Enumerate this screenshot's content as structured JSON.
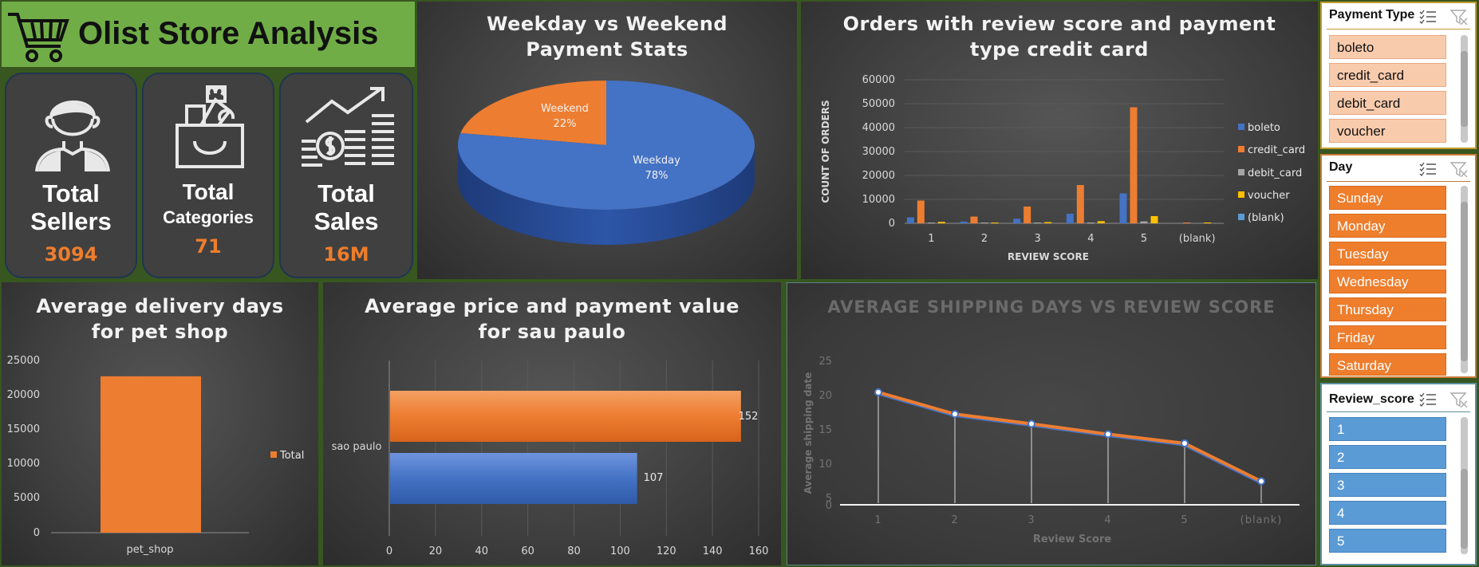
{
  "header": {
    "title": "Olist Store Analysis"
  },
  "kpis": [
    {
      "line1": "Total",
      "line2": "Sellers",
      "value": "3094",
      "icon": "person-icon"
    },
    {
      "line1": "Total",
      "line2": "Categories",
      "value": "71",
      "icon": "shopping-bag-icon"
    },
    {
      "line1": "Total",
      "line2": "Sales",
      "value": "16M",
      "icon": "coins-growth-icon"
    }
  ],
  "colors": {
    "orange": "#ed7d31",
    "blue": "#4472c4",
    "gray": "#a5a5a5",
    "yellow": "#ffc000",
    "lightblue": "#5b9bd5",
    "green": "#70ad47"
  },
  "pie": {
    "title_line1": "Weekday vs Weekend",
    "title_line2": "Payment Stats",
    "weekend_label": "Weekend",
    "weekend_pct": "22%",
    "weekday_label": "Weekday",
    "weekday_pct": "78%"
  },
  "orders": {
    "title_line1": "Orders with review score and payment",
    "title_line2": "type credit card",
    "ylabel": "COUNT OF ORDERS",
    "xlabel": "REVIEW SCORE",
    "yticks": [
      "60000",
      "50000",
      "40000",
      "30000",
      "20000",
      "10000",
      "0"
    ],
    "legend": [
      "boleto",
      "credit_card",
      "debit_card",
      "voucher",
      "(blank)"
    ]
  },
  "pet": {
    "title_line1": "Average delivery days",
    "title_line2": "for pet shop",
    "yticks": [
      "25000",
      "20000",
      "15000",
      "10000",
      "5000",
      "0"
    ],
    "category": "pet_shop",
    "legend": "Total"
  },
  "sp": {
    "title_line1": "Average price and payment value",
    "title_line2": "for sau paulo",
    "category": "sao paulo",
    "label_top": "152",
    "label_bottom": "107",
    "xticks": [
      "0",
      "20",
      "40",
      "60",
      "80",
      "100",
      "120",
      "140",
      "160"
    ]
  },
  "ship": {
    "title": "AVERAGE SHIPPING DAYS VS REVIEW SCORE",
    "ylabel": "Average shipping date",
    "xlabel": "Review Score",
    "yticks": [
      "25",
      "20",
      "15",
      "10",
      "5",
      "0"
    ]
  },
  "chart_data": [
    {
      "type": "pie",
      "title": "Weekday vs Weekend Payment Stats",
      "categories": [
        "Weekend",
        "Weekday"
      ],
      "values": [
        22,
        78
      ]
    },
    {
      "type": "bar",
      "title": "Orders with review score and payment type credit card",
      "xlabel": "REVIEW SCORE",
      "ylabel": "COUNT OF ORDERS",
      "ylim": [
        0,
        60000
      ],
      "categories": [
        "1",
        "2",
        "3",
        "4",
        "5",
        "(blank)"
      ],
      "series": [
        {
          "name": "boleto",
          "values": [
            2500,
            700,
            1900,
            4000,
            12500,
            0
          ]
        },
        {
          "name": "credit_card",
          "values": [
            9500,
            2800,
            7000,
            16000,
            48500,
            300
          ]
        },
        {
          "name": "debit_card",
          "values": [
            200,
            100,
            200,
            300,
            800,
            0
          ]
        },
        {
          "name": "voucher",
          "values": [
            600,
            200,
            500,
            900,
            3000,
            100
          ]
        },
        {
          "name": "(blank)",
          "values": [
            0,
            0,
            0,
            0,
            0,
            0
          ]
        }
      ],
      "legend": "right"
    },
    {
      "type": "bar",
      "title": "Average delivery days for pet shop",
      "categories": [
        "pet_shop"
      ],
      "series": [
        {
          "name": "Total",
          "values": [
            22700
          ]
        }
      ],
      "ylim": [
        0,
        25000
      ],
      "legend": "right"
    },
    {
      "type": "bar",
      "orientation": "horizontal",
      "title": "Average price and payment value for sau paulo",
      "categories": [
        "sao paulo"
      ],
      "series": [
        {
          "values": [
            152
          ]
        },
        {
          "values": [
            107
          ]
        }
      ],
      "xlim": [
        0,
        160
      ]
    },
    {
      "type": "line",
      "title": "AVERAGE SHIPPING DAYS VS REVIEW SCORE",
      "xlabel": "Review Score",
      "ylabel": "Average shipping date",
      "x": [
        "1",
        "2",
        "3",
        "4",
        "5",
        "(blank)"
      ],
      "series": [
        {
          "values": [
            19.6,
            15.8,
            14.1,
            12.3,
            10.7,
            4.1
          ]
        }
      ],
      "ylim": [
        0,
        25
      ]
    }
  ],
  "slicers": {
    "payment": {
      "title": "Payment Type",
      "items": [
        "boleto",
        "credit_card",
        "debit_card",
        "voucher"
      ]
    },
    "day": {
      "title": "Day",
      "items": [
        "Sunday",
        "Monday",
        "Tuesday",
        "Wednesday",
        "Thursday",
        "Friday",
        "Saturday"
      ]
    },
    "review": {
      "title": "Review_score",
      "items": [
        "1",
        "2",
        "3",
        "4",
        "5"
      ]
    }
  }
}
